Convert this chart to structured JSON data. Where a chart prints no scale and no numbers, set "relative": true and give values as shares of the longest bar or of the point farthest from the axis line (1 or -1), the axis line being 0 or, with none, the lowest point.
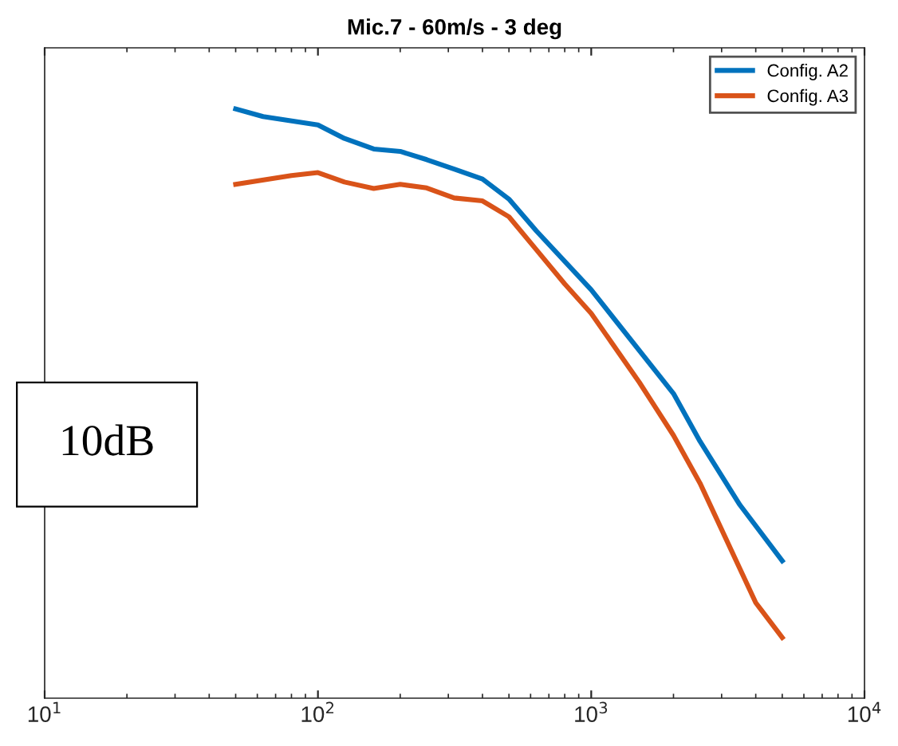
{
  "chart_data": {
    "type": "line",
    "title": "Mic.7 - 60m/s - 3 deg",
    "relative": true,
    "log": "x",
    "xlim": [
      10,
      10000
    ],
    "xticks": [
      {
        "value": 10,
        "label": "10$^{1}$"
      },
      {
        "value": 100,
        "label": "10$^{2}$"
      },
      {
        "value": 1000,
        "label": "10$^{3}$"
      },
      {
        "value": 10000,
        "label": "10$^{4}$"
      }
    ],
    "series": [
      {
        "name": "Config. A2",
        "color": "#0072bd",
        "x": [
          50,
          63,
          100,
          125,
          160,
          200,
          250,
          315,
          400,
          500,
          630,
          1000,
          2000,
          2500,
          3500,
          5000
        ],
        "values": [
          1.0,
          0.987,
          0.973,
          0.95,
          0.932,
          0.928,
          0.914,
          0.898,
          0.881,
          0.847,
          0.793,
          0.693,
          0.517,
          0.436,
          0.328,
          0.233
        ]
      },
      {
        "name": "Config. A3",
        "color": "#d95319",
        "x": [
          50,
          80,
          100,
          125,
          160,
          200,
          250,
          315,
          400,
          500,
          630,
          800,
          1000,
          1500,
          2000,
          2500,
          4000,
          5000
        ],
        "values": [
          0.872,
          0.887,
          0.892,
          0.876,
          0.865,
          0.872,
          0.866,
          0.849,
          0.844,
          0.817,
          0.761,
          0.703,
          0.653,
          0.536,
          0.446,
          0.365,
          0.162,
          0.103
        ]
      }
    ],
    "annotations": [
      "10dB"
    ],
    "legend": "top right",
    "grid": false,
    "line_style": "solid",
    "marker": "none"
  }
}
